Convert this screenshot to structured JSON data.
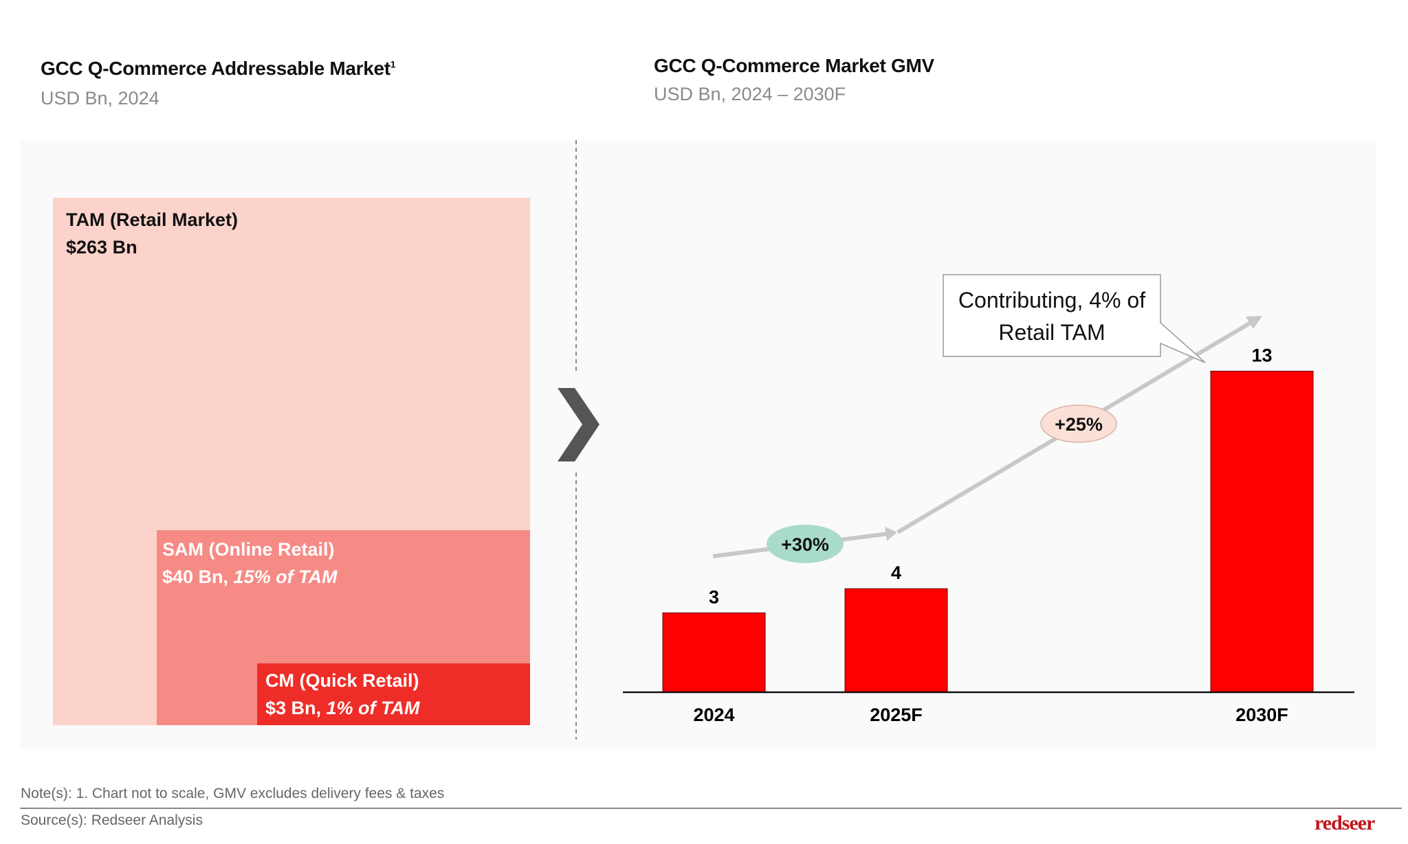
{
  "left": {
    "title": "GCC Q-Commerce Addressable Market",
    "title_sup": "1",
    "subtitle": "USD Bn, 2024",
    "tam": {
      "label": "TAM (Retail Market)",
      "value": "$263 Bn",
      "color": "#fcd3ca"
    },
    "sam": {
      "label": "SAM (Online Retail)",
      "value": "$40 Bn, ",
      "share": "15% of TAM",
      "color": "#f68a85"
    },
    "cm": {
      "label": "CM (Quick Retail)",
      "value": "$3 Bn, ",
      "share": "1% of TAM",
      "color": "#ee2d28"
    }
  },
  "right": {
    "title": "GCC Q-Commerce Market GMV",
    "subtitle": "USD Bn, 2024 – 2030F",
    "callout_line1": "Contributing, 4% of",
    "callout_line2": "Retail TAM",
    "cagr1": {
      "label": "+30%",
      "color": "#a9dcc8"
    },
    "cagr2": {
      "label": "+25%",
      "color": "#fbe0d8"
    }
  },
  "chart_data": {
    "type": "bar",
    "title": "GCC Q-Commerce Market GMV",
    "ylabel": "USD Bn",
    "categories": [
      "2024",
      "2025F",
      "2030F"
    ],
    "values": [
      3,
      4,
      13
    ],
    "value_labels": [
      "3",
      "4",
      "13"
    ],
    "bar_color": "#ff0000",
    "grid": false,
    "annotations": [
      "+30%",
      "+25%",
      "Contributing, 4% of Retail TAM"
    ]
  },
  "footer": {
    "note": "Note(s): 1. Chart not to scale, GMV excludes delivery fees & taxes",
    "source": "Source(s): Redseer Analysis",
    "logo": "redseer",
    "logo_color": "#c0171d"
  }
}
